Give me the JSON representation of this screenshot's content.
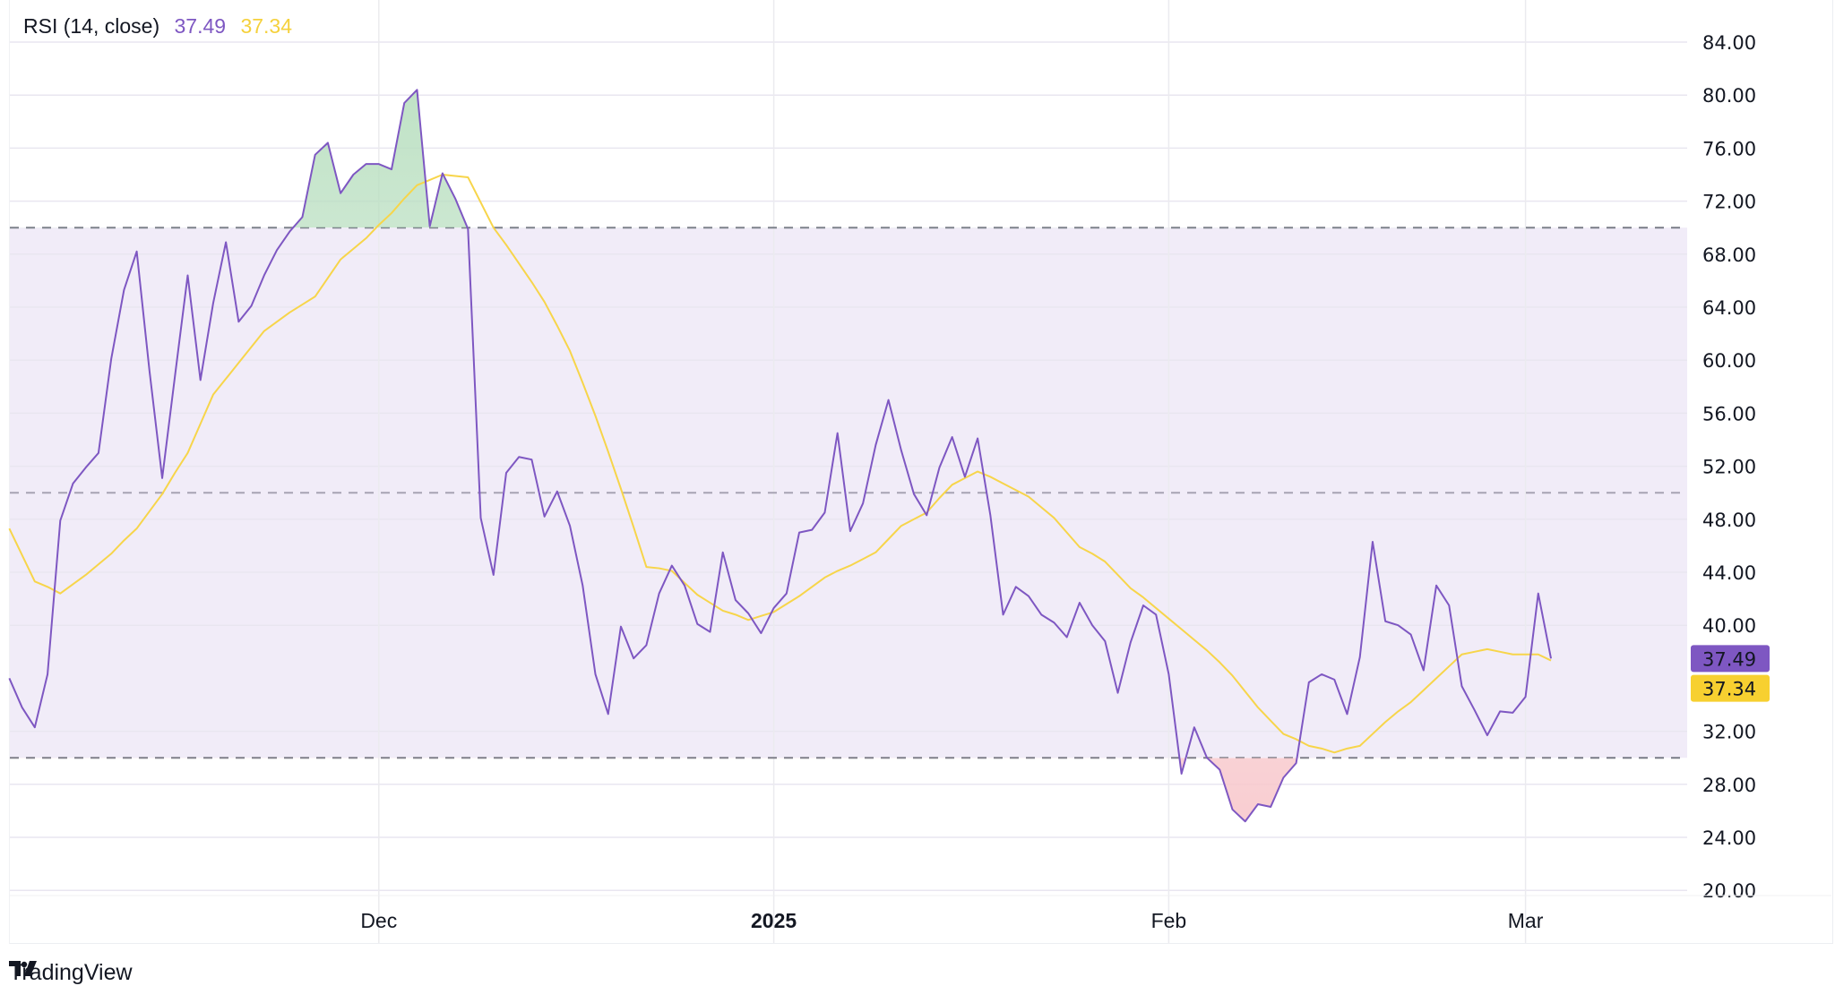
{
  "chart_data": {
    "type": "line",
    "title": "RSI (14, close)",
    "last_values": {
      "rsi": "37.49",
      "rsi_ma": "37.34"
    },
    "y_ticks": [
      "84.00",
      "80.00",
      "76.00",
      "72.00",
      "68.00",
      "64.00",
      "60.00",
      "56.00",
      "52.00",
      "48.00",
      "44.00",
      "40.00",
      "32.00",
      "28.00",
      "24.00",
      "20.00"
    ],
    "ylim": [
      20,
      84
    ],
    "x_ticks": [
      {
        "label": "Dec",
        "date": "2024-12-01",
        "bold": false
      },
      {
        "label": "2025",
        "date": "2025-01-01",
        "bold": true
      },
      {
        "label": "Feb",
        "date": "2025-02-01",
        "bold": false
      },
      {
        "label": "Mar",
        "date": "2025-03-01",
        "bold": false
      }
    ],
    "bands": {
      "upper": 70,
      "middle": 50,
      "lower": 30
    },
    "grid": true,
    "colors": {
      "rsi": "#7e57c2",
      "rsi_ma": "#f7d54a",
      "band_fill": "#f1ecf8",
      "overbought_fill": "#b9dfc0",
      "oversold_fill": "#f8c8cc"
    },
    "dates": [
      "2024-11-02",
      "2024-11-03",
      "2024-11-04",
      "2024-11-05",
      "2024-11-06",
      "2024-11-07",
      "2024-11-08",
      "2024-11-09",
      "2024-11-10",
      "2024-11-11",
      "2024-11-12",
      "2024-11-13",
      "2024-11-14",
      "2024-11-15",
      "2024-11-16",
      "2024-11-17",
      "2024-11-18",
      "2024-11-19",
      "2024-11-20",
      "2024-11-21",
      "2024-11-22",
      "2024-11-23",
      "2024-11-24",
      "2024-11-25",
      "2024-11-26",
      "2024-11-27",
      "2024-11-28",
      "2024-11-29",
      "2024-11-30",
      "2024-12-01",
      "2024-12-02",
      "2024-12-03",
      "2024-12-04",
      "2024-12-05",
      "2024-12-06",
      "2024-12-07",
      "2024-12-08",
      "2024-12-09",
      "2024-12-10",
      "2024-12-11",
      "2024-12-12",
      "2024-12-13",
      "2024-12-14",
      "2024-12-15",
      "2024-12-16",
      "2024-12-17",
      "2024-12-18",
      "2024-12-19",
      "2024-12-20",
      "2024-12-21",
      "2024-12-22",
      "2024-12-23",
      "2024-12-24",
      "2024-12-25",
      "2024-12-26",
      "2024-12-27",
      "2024-12-28",
      "2024-12-29",
      "2024-12-30",
      "2024-12-31",
      "2025-01-01",
      "2025-01-02",
      "2025-01-03",
      "2025-01-04",
      "2025-01-05",
      "2025-01-06",
      "2025-01-07",
      "2025-01-08",
      "2025-01-09",
      "2025-01-10",
      "2025-01-11",
      "2025-01-12",
      "2025-01-13",
      "2025-01-14",
      "2025-01-15",
      "2025-01-16",
      "2025-01-17",
      "2025-01-18",
      "2025-01-19",
      "2025-01-20",
      "2025-01-21",
      "2025-01-22",
      "2025-01-23",
      "2025-01-24",
      "2025-01-25",
      "2025-01-26",
      "2025-01-27",
      "2025-01-28",
      "2025-01-29",
      "2025-01-30",
      "2025-01-31",
      "2025-02-01",
      "2025-02-02",
      "2025-02-03",
      "2025-02-04",
      "2025-02-05",
      "2025-02-06",
      "2025-02-07",
      "2025-02-08",
      "2025-02-09",
      "2025-02-10",
      "2025-02-11",
      "2025-02-12",
      "2025-02-13",
      "2025-02-14",
      "2025-02-15",
      "2025-02-16",
      "2025-02-17",
      "2025-02-18",
      "2025-02-19",
      "2025-02-20",
      "2025-02-21",
      "2025-02-22",
      "2025-02-23",
      "2025-02-24",
      "2025-02-25",
      "2025-02-26",
      "2025-02-27",
      "2025-02-28",
      "2025-03-01",
      "2025-03-02",
      "2025-03-03"
    ],
    "series": [
      {
        "key": "rsi",
        "values": [
          36.0,
          33.8,
          32.3,
          36.3,
          47.9,
          50.7,
          51.9,
          53.0,
          60.1,
          65.3,
          68.2,
          59.2,
          51.1,
          58.8,
          66.4,
          58.5,
          64.3,
          68.9,
          62.9,
          64.1,
          66.4,
          68.3,
          69.7,
          70.8,
          75.5,
          76.4,
          72.6,
          74.0,
          74.8,
          74.8,
          74.4,
          79.4,
          80.4,
          70.1,
          74.1,
          72.2,
          69.9,
          48.1,
          43.8,
          51.5,
          52.7,
          52.5,
          48.2,
          50.1,
          47.5,
          43.0,
          36.3,
          33.3,
          39.9,
          37.5,
          38.5,
          42.4,
          44.5,
          43.0,
          40.1,
          39.5,
          45.5,
          41.9,
          40.9,
          39.4,
          41.3,
          42.4,
          47.0,
          47.2,
          48.5,
          54.5,
          47.1,
          49.2,
          53.6,
          57.0,
          53.2,
          49.9,
          48.3,
          51.9,
          54.2,
          51.2,
          54.1,
          48.3,
          40.8,
          42.9,
          42.2,
          40.8,
          40.2,
          39.1,
          41.7,
          40.0,
          38.8,
          34.9,
          38.7,
          41.5,
          40.8,
          36.3,
          28.8,
          32.3,
          30.0,
          29.1,
          26.1,
          25.2,
          26.5,
          26.3,
          28.5,
          29.6,
          35.7,
          36.3,
          35.9,
          33.3,
          37.6,
          46.3,
          40.3,
          40.0,
          39.3,
          36.6,
          43.0,
          41.5,
          35.4,
          33.6,
          31.7,
          33.5,
          33.4,
          34.6,
          42.4,
          37.49
        ]
      },
      {
        "key": "rsi_ma",
        "values": [
          47.3,
          45.3,
          43.3,
          42.9,
          42.4,
          43.1,
          43.8,
          44.6,
          45.4,
          46.4,
          47.3,
          48.6,
          49.9,
          51.5,
          53.0,
          55.2,
          57.4,
          58.6,
          59.8,
          61.0,
          62.2,
          62.9,
          63.6,
          64.2,
          64.8,
          66.2,
          67.6,
          68.4,
          69.2,
          70.2,
          71.1,
          72.2,
          73.2,
          73.6,
          74.0,
          73.9,
          73.8,
          71.9,
          70.0,
          68.7,
          67.3,
          65.9,
          64.4,
          62.6,
          60.7,
          58.3,
          55.8,
          53.1,
          50.3,
          47.4,
          44.4,
          44.3,
          44.1,
          43.2,
          42.3,
          41.7,
          41.1,
          40.8,
          40.4,
          40.7,
          41.0,
          41.6,
          42.2,
          42.9,
          43.6,
          44.1,
          44.5,
          45.0,
          45.5,
          46.5,
          47.5,
          48.0,
          48.5,
          49.6,
          50.6,
          51.1,
          51.6,
          51.2,
          50.7,
          50.2,
          49.7,
          48.9,
          48.1,
          47.0,
          45.9,
          45.4,
          44.8,
          43.8,
          42.8,
          42.1,
          41.3,
          40.5,
          39.7,
          38.9,
          38.1,
          37.2,
          36.2,
          35.0,
          33.8,
          32.8,
          31.8,
          31.4,
          30.9,
          30.7,
          30.4,
          30.7,
          30.9,
          31.8,
          32.7,
          33.5,
          34.2,
          35.1,
          36.0,
          36.9,
          37.8,
          38.0,
          38.2,
          38.0,
          37.8,
          37.8,
          37.8,
          37.34
        ]
      }
    ]
  },
  "branding": {
    "name": "TradingView",
    "logo_text": "TV"
  }
}
